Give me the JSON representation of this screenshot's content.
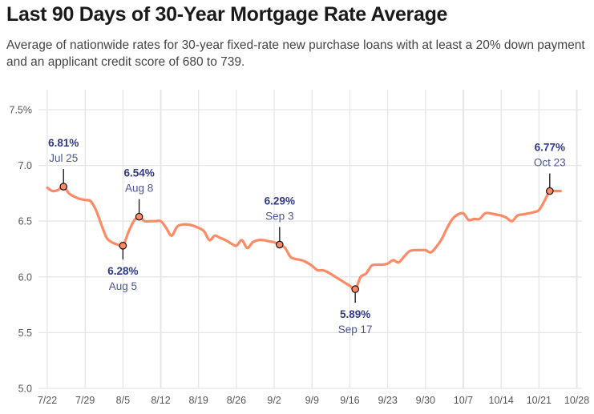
{
  "colors": {
    "line": "#ff8a65",
    "annotation": "#2e3a87",
    "grid": "#e6e6e6"
  },
  "chart_data": {
    "type": "line",
    "title": "Last 90 Days of 30-Year Mortgage Rate Average",
    "subtitle": "Average of nationwide rates for 30-year fixed-rate new purchase loans with at least a 20% down payment and an applicant credit score of 680 to 739.",
    "xlabel": "",
    "ylabel": "",
    "ylim": [
      5.0,
      7.6
    ],
    "y_ticks": [
      {
        "value": 7.5,
        "label": "7.5%"
      },
      {
        "value": 7.0,
        "label": "7.0"
      },
      {
        "value": 6.5,
        "label": "6.5"
      },
      {
        "value": 6.0,
        "label": "6.0"
      },
      {
        "value": 5.5,
        "label": "5.5"
      },
      {
        "value": 5.0,
        "label": "5.0"
      }
    ],
    "x_ticks": [
      {
        "day": 0,
        "label": "7/22"
      },
      {
        "day": 7,
        "label": "7/29"
      },
      {
        "day": 14,
        "label": "8/5"
      },
      {
        "day": 21,
        "label": "8/12"
      },
      {
        "day": 28,
        "label": "8/19"
      },
      {
        "day": 35,
        "label": "8/26"
      },
      {
        "day": 42,
        "label": "9/2"
      },
      {
        "day": 49,
        "label": "9/9"
      },
      {
        "day": 56,
        "label": "9/16"
      },
      {
        "day": 63,
        "label": "9/23"
      },
      {
        "day": 70,
        "label": "9/30"
      },
      {
        "day": 77,
        "label": "10/7"
      },
      {
        "day": 84,
        "label": "10/14"
      },
      {
        "day": 91,
        "label": "10/21"
      },
      {
        "day": 98,
        "label": "10/28"
      }
    ],
    "xlim_days": [
      0,
      98
    ],
    "grid": true,
    "series": [
      {
        "name": "30-Year Mortgage Rate Average",
        "start_date": "7/22",
        "values": [
          6.8,
          6.77,
          6.78,
          6.81,
          6.75,
          6.72,
          6.7,
          6.69,
          6.68,
          6.6,
          6.47,
          6.35,
          6.31,
          6.29,
          6.28,
          6.4,
          6.5,
          6.54,
          6.5,
          6.5,
          6.5,
          6.5,
          6.44,
          6.37,
          6.45,
          6.47,
          6.47,
          6.46,
          6.44,
          6.41,
          6.33,
          6.37,
          6.35,
          6.33,
          6.3,
          6.28,
          6.33,
          6.26,
          6.31,
          6.33,
          6.33,
          6.32,
          6.31,
          6.29,
          6.26,
          6.18,
          6.16,
          6.15,
          6.13,
          6.1,
          6.06,
          6.06,
          6.04,
          6.01,
          5.98,
          5.95,
          5.92,
          5.89,
          6.0,
          6.03,
          6.1,
          6.11,
          6.11,
          6.12,
          6.15,
          6.13,
          6.18,
          6.23,
          6.24,
          6.24,
          6.24,
          6.22,
          6.27,
          6.34,
          6.44,
          6.52,
          6.56,
          6.57,
          6.51,
          6.52,
          6.52,
          6.57,
          6.57,
          6.56,
          6.55,
          6.53,
          6.5,
          6.55,
          6.56,
          6.57,
          6.58,
          6.6,
          6.68,
          6.77,
          6.77,
          6.77
        ]
      }
    ],
    "annotations": [
      {
        "day": 3,
        "value": 6.81,
        "value_label": "6.81%",
        "date_label": "Jul 25",
        "position": "above"
      },
      {
        "day": 14,
        "value": 6.28,
        "value_label": "6.28%",
        "date_label": "Aug 5",
        "position": "below"
      },
      {
        "day": 17,
        "value": 6.54,
        "value_label": "6.54%",
        "date_label": "Aug 8",
        "position": "above"
      },
      {
        "day": 43,
        "value": 6.29,
        "value_label": "6.29%",
        "date_label": "Sep 3",
        "position": "above"
      },
      {
        "day": 57,
        "value": 5.89,
        "value_label": "5.89%",
        "date_label": "Sep 17",
        "position": "below"
      },
      {
        "day": 93,
        "value": 6.77,
        "value_label": "6.77%",
        "date_label": "Oct 23",
        "position": "above"
      }
    ]
  }
}
